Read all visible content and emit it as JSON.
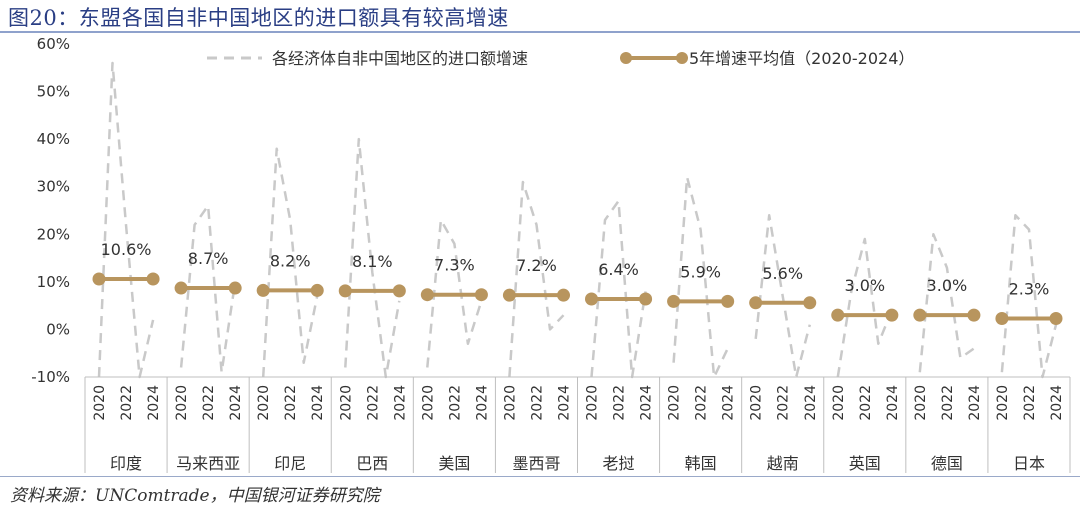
{
  "title": "图20：东盟各国自非中国地区的进口额具有较高增速",
  "source": "资料来源：UNComtrade，中国银河证券研究院",
  "colors": {
    "dashed": "#c9c9c9",
    "avg": "#b8955e",
    "axis": "#bfbfbf",
    "text": "#333333"
  },
  "chart_data": {
    "type": "line",
    "title": "",
    "ylim": [
      -10,
      60
    ],
    "yticks": [
      "-10%",
      "0%",
      "10%",
      "20%",
      "30%",
      "40%",
      "50%",
      "60%"
    ],
    "years": [
      "2020",
      "2021",
      "2022",
      "2023",
      "2024"
    ],
    "year_labels": [
      "2020",
      "2022",
      "2024"
    ],
    "legend": {
      "growth": "各经济体自非中国地区的进口额增速",
      "avg": "5年增速平均值（2020-2024）"
    },
    "groups": [
      {
        "name": "印度",
        "growth": [
          -10,
          56,
          22,
          -10,
          2
        ],
        "avg": 10.6,
        "avg_label": "10.6%"
      },
      {
        "name": "马来西亚",
        "growth": [
          -8,
          22,
          26,
          -9,
          10
        ],
        "avg": 8.7,
        "avg_label": "8.7%"
      },
      {
        "name": "印尼",
        "growth": [
          -10,
          38,
          23,
          -7,
          7
        ],
        "avg": 8.2,
        "avg_label": "8.2%"
      },
      {
        "name": "巴西",
        "growth": [
          -8,
          40,
          12,
          -10,
          6
        ],
        "avg": 8.1,
        "avg_label": "8.1%"
      },
      {
        "name": "美国",
        "growth": [
          -8,
          23,
          18,
          -3,
          6
        ],
        "avg": 7.3,
        "avg_label": "7.3%"
      },
      {
        "name": "墨西哥",
        "growth": [
          -10,
          31,
          22,
          0,
          3
        ],
        "avg": 7.2,
        "avg_label": "7.2%"
      },
      {
        "name": "老挝",
        "growth": [
          -10,
          23,
          27,
          -10,
          8
        ],
        "avg": 6.4,
        "avg_label": "6.4%"
      },
      {
        "name": "韩国",
        "growth": [
          -7,
          32,
          21,
          -10,
          -4
        ],
        "avg": 5.9,
        "avg_label": "5.9%"
      },
      {
        "name": "越南",
        "growth": [
          -2,
          24,
          7,
          -10,
          1
        ],
        "avg": 5.6,
        "avg_label": "5.6%"
      },
      {
        "name": "英国",
        "growth": [
          -10,
          8,
          19,
          -3,
          4
        ],
        "avg": 3.0,
        "avg_label": "3.0%"
      },
      {
        "name": "德国",
        "growth": [
          -9,
          20,
          13,
          -6,
          -4
        ],
        "avg": 3.0,
        "avg_label": "3.0%"
      },
      {
        "name": "日本",
        "growth": [
          -9,
          24,
          21,
          -10,
          1
        ],
        "avg": 2.3,
        "avg_label": "2.3%"
      }
    ]
  }
}
